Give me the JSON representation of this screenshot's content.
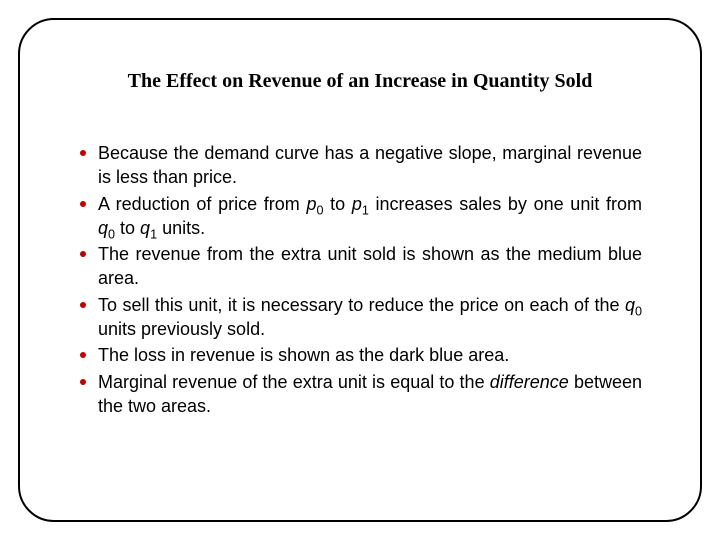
{
  "slide": {
    "title": "The Effect on Revenue of an Increase in Quantity Sold",
    "title_fontsize": 20,
    "title_font": "Times New Roman",
    "bullet_color": "#c00000",
    "body_fontsize": 18,
    "border_color": "#000000",
    "border_radius": 36,
    "background_color": "#ffffff",
    "bullets": [
      {
        "text": "Because the demand curve has a negative slope, marginal revenue is less than price."
      },
      {
        "text_html": "A reduction of price from <span class=\"italic\">p</span><sub>0</sub> to <span class=\"italic\">p</span><sub>1</sub> increases sales by one unit from <span class=\"italic\">q</span><sub>0</sub> to <span class=\"italic\">q</span><sub>1</sub> units."
      },
      {
        "text": "The revenue from the extra unit sold is shown as the medium blue area."
      },
      {
        "text_html": "To sell this unit, it is necessary to reduce the price on each of the <span class=\"italic\">q</span><sub>0</sub> units previously sold."
      },
      {
        "text": "The loss in revenue is shown as the dark blue area."
      },
      {
        "text_html": "Marginal revenue of the extra unit is equal to the <span class=\"italic\">difference</span> between the two areas."
      }
    ]
  }
}
